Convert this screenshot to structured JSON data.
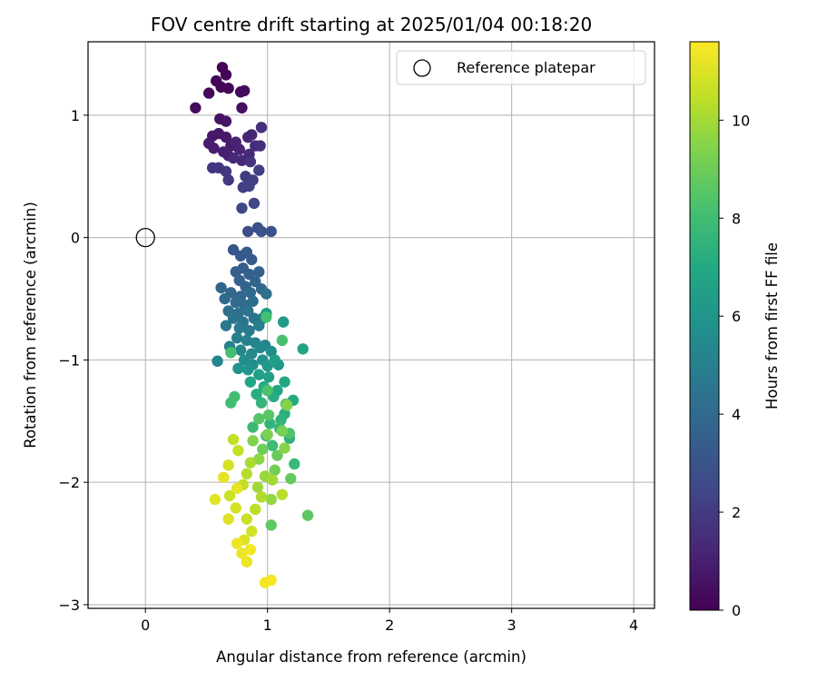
{
  "chart_data": {
    "type": "scatter",
    "title": "FOV centre drift starting at 2025/01/04 00:18:20",
    "xlabel": "Angular distance from reference (arcmin)",
    "ylabel": "Rotation from reference (arcmin)",
    "xlim": [
      -0.47,
      4.17
    ],
    "ylim": [
      -3.03,
      1.6
    ],
    "xticks": [
      0,
      1,
      2,
      3,
      4
    ],
    "yticks": [
      1,
      0,
      -1,
      -2,
      -3
    ],
    "xtick_labels": [
      "0",
      "1",
      "2",
      "3",
      "4"
    ],
    "ytick_labels": [
      "1",
      "0",
      "−1",
      "−2",
      "−3"
    ],
    "grid": true,
    "legend": {
      "placement": "top-right",
      "entries": [
        "Reference platepar"
      ]
    },
    "reference_point": {
      "name": "Reference platepar",
      "x": 0,
      "y": 0,
      "marker": "open-circle"
    },
    "colorbar": {
      "label": "Hours from first FF file",
      "range": [
        0,
        11.6
      ],
      "ticks": [
        0,
        2,
        4,
        6,
        8,
        10
      ],
      "tick_labels": [
        "0",
        "2",
        "4",
        "6",
        "8",
        "10"
      ],
      "colormap": "viridis"
    },
    "series": [
      {
        "color_by": "Hours from first FF file",
        "points": [
          [
            0.63,
            1.39,
            0.05
          ],
          [
            0.58,
            1.28,
            0.1
          ],
          [
            0.66,
            1.33,
            0.12
          ],
          [
            0.62,
            1.23,
            0.15
          ],
          [
            0.68,
            1.22,
            0.2
          ],
          [
            0.52,
            1.18,
            0.22
          ],
          [
            0.78,
            1.19,
            0.3
          ],
          [
            0.81,
            1.2,
            0.32
          ],
          [
            0.41,
            1.06,
            0.35
          ],
          [
            0.79,
            1.06,
            0.45
          ],
          [
            0.61,
            0.97,
            0.55
          ],
          [
            0.66,
            0.95,
            0.6
          ],
          [
            0.55,
            0.83,
            0.7
          ],
          [
            0.6,
            0.85,
            0.75
          ],
          [
            0.66,
            0.82,
            0.8
          ],
          [
            0.7,
            0.75,
            0.85
          ],
          [
            0.52,
            0.77,
            0.9
          ],
          [
            0.56,
            0.73,
            0.95
          ],
          [
            0.64,
            0.7,
            1.0
          ],
          [
            0.68,
            0.67,
            1.05
          ],
          [
            0.74,
            0.78,
            1.1
          ],
          [
            0.77,
            0.72,
            1.15
          ],
          [
            0.84,
            0.82,
            1.2
          ],
          [
            0.87,
            0.84,
            1.25
          ],
          [
            0.72,
            0.65,
            1.3
          ],
          [
            0.79,
            0.63,
            1.35
          ],
          [
            0.85,
            0.68,
            1.4
          ],
          [
            0.9,
            0.75,
            1.45
          ],
          [
            0.95,
            0.9,
            1.55
          ],
          [
            0.94,
            0.75,
            1.6
          ],
          [
            0.86,
            0.62,
            1.7
          ],
          [
            0.6,
            0.57,
            1.75
          ],
          [
            0.55,
            0.57,
            1.8
          ],
          [
            0.66,
            0.54,
            1.85
          ],
          [
            0.68,
            0.47,
            1.9
          ],
          [
            0.82,
            0.5,
            2.0
          ],
          [
            0.88,
            0.47,
            2.05
          ],
          [
            0.93,
            0.55,
            2.1
          ],
          [
            0.8,
            0.41,
            2.2
          ],
          [
            0.85,
            0.42,
            2.25
          ],
          [
            0.89,
            0.28,
            2.4
          ],
          [
            0.79,
            0.24,
            2.5
          ],
          [
            0.84,
            0.05,
            2.7
          ],
          [
            0.92,
            0.08,
            2.8
          ],
          [
            0.95,
            0.05,
            2.85
          ],
          [
            1.03,
            0.05,
            2.9
          ],
          [
            0.72,
            -0.1,
            3.1
          ],
          [
            0.78,
            -0.15,
            3.2
          ],
          [
            0.83,
            -0.12,
            3.25
          ],
          [
            0.87,
            -0.18,
            3.3
          ],
          [
            0.8,
            -0.25,
            3.4
          ],
          [
            0.74,
            -0.28,
            3.45
          ],
          [
            0.85,
            -0.3,
            3.5
          ],
          [
            0.93,
            -0.28,
            3.55
          ],
          [
            0.77,
            -0.35,
            3.6
          ],
          [
            0.82,
            -0.4,
            3.65
          ],
          [
            0.9,
            -0.36,
            3.7
          ],
          [
            0.62,
            -0.41,
            3.75
          ],
          [
            0.7,
            -0.45,
            3.8
          ],
          [
            0.78,
            -0.48,
            3.85
          ],
          [
            0.86,
            -0.45,
            3.9
          ],
          [
            0.95,
            -0.42,
            3.95
          ],
          [
            0.65,
            -0.5,
            4.0
          ],
          [
            0.74,
            -0.53,
            4.05
          ],
          [
            0.81,
            -0.55,
            4.1
          ],
          [
            0.88,
            -0.52,
            4.15
          ],
          [
            0.99,
            -0.46,
            4.2
          ],
          [
            0.68,
            -0.6,
            4.25
          ],
          [
            0.76,
            -0.62,
            4.3
          ],
          [
            0.84,
            -0.6,
            4.35
          ],
          [
            0.72,
            -0.66,
            4.4
          ],
          [
            0.8,
            -0.69,
            4.45
          ],
          [
            0.89,
            -0.66,
            4.5
          ],
          [
            0.96,
            -0.66,
            4.55
          ],
          [
            0.66,
            -0.72,
            4.6
          ],
          [
            0.77,
            -0.74,
            4.7
          ],
          [
            0.85,
            -0.76,
            4.75
          ],
          [
            0.93,
            -0.72,
            4.85
          ],
          [
            0.75,
            -0.82,
            4.9
          ],
          [
            0.83,
            -0.84,
            5.0
          ],
          [
            0.69,
            -0.89,
            5.05
          ],
          [
            0.9,
            -0.86,
            5.1
          ],
          [
            0.98,
            -0.88,
            5.2
          ],
          [
            0.59,
            -1.01,
            5.25
          ],
          [
            0.78,
            -0.92,
            5.3
          ],
          [
            0.87,
            -0.95,
            5.4
          ],
          [
            0.94,
            -0.9,
            5.45
          ],
          [
            1.03,
            -0.93,
            5.6
          ],
          [
            0.81,
            -1.0,
            5.65
          ],
          [
            0.88,
            -1.04,
            5.7
          ],
          [
            0.96,
            -1.0,
            5.8
          ],
          [
            0.76,
            -1.07,
            5.9
          ],
          [
            0.84,
            -1.08,
            6.0
          ],
          [
            1.0,
            -1.05,
            6.1
          ],
          [
            1.09,
            -1.04,
            6.2
          ],
          [
            1.13,
            -0.69,
            6.3
          ],
          [
            0.99,
            -0.62,
            6.35
          ],
          [
            1.06,
            -1.0,
            6.45
          ],
          [
            0.93,
            -1.12,
            6.5
          ],
          [
            1.01,
            -1.14,
            6.6
          ],
          [
            1.29,
            -0.91,
            6.7
          ],
          [
            1.08,
            -1.25,
            6.8
          ],
          [
            0.86,
            -1.18,
            6.85
          ],
          [
            1.14,
            -1.18,
            6.9
          ],
          [
            1.21,
            -1.33,
            7.0
          ],
          [
            0.97,
            -1.22,
            7.1
          ],
          [
            1.05,
            -1.3,
            7.15
          ],
          [
            0.91,
            -1.28,
            7.2
          ],
          [
            1.14,
            -1.44,
            7.3
          ],
          [
            1.18,
            -1.64,
            7.4
          ],
          [
            1.11,
            -1.49,
            7.5
          ],
          [
            1.02,
            -1.52,
            7.55
          ],
          [
            0.95,
            -1.35,
            7.6
          ],
          [
            1.1,
            -1.56,
            7.7
          ],
          [
            1.22,
            -1.85,
            7.75
          ],
          [
            0.99,
            -1.62,
            7.8
          ],
          [
            0.88,
            -1.55,
            7.85
          ],
          [
            1.04,
            -1.7,
            7.9
          ],
          [
            0.7,
            -1.35,
            8.0
          ],
          [
            0.73,
            -1.3,
            8.05
          ],
          [
            0.99,
            -0.65,
            8.1
          ],
          [
            0.7,
            -0.94,
            8.15
          ],
          [
            1.12,
            -0.84,
            8.2
          ],
          [
            1.0,
            -1.25,
            8.3
          ],
          [
            1.18,
            -1.6,
            8.4
          ],
          [
            1.15,
            -1.36,
            8.45
          ],
          [
            0.93,
            -1.48,
            8.5
          ],
          [
            1.01,
            -1.45,
            8.55
          ],
          [
            1.33,
            -2.27,
            8.65
          ],
          [
            1.03,
            -2.35,
            8.7
          ],
          [
            1.19,
            -1.97,
            8.8
          ],
          [
            1.08,
            -1.78,
            8.9
          ],
          [
            0.96,
            -1.73,
            9.0
          ],
          [
            1.06,
            -1.9,
            9.1
          ],
          [
            1.12,
            -1.58,
            9.2
          ],
          [
            1.0,
            -1.61,
            9.3
          ],
          [
            0.88,
            -1.66,
            9.4
          ],
          [
            1.16,
            -1.37,
            9.45
          ],
          [
            1.14,
            -1.72,
            9.5
          ],
          [
            0.93,
            -1.81,
            9.6
          ],
          [
            1.03,
            -2.14,
            9.7
          ],
          [
            0.98,
            -1.95,
            9.8
          ],
          [
            0.92,
            -2.04,
            9.9
          ],
          [
            1.04,
            -1.98,
            10.0
          ],
          [
            0.86,
            -1.84,
            10.1
          ],
          [
            0.95,
            -2.12,
            10.2
          ],
          [
            0.83,
            -1.93,
            10.3
          ],
          [
            1.12,
            -2.1,
            10.35
          ],
          [
            0.9,
            -2.22,
            10.4
          ],
          [
            0.8,
            -2.02,
            10.5
          ],
          [
            0.72,
            -1.65,
            10.55
          ],
          [
            0.76,
            -1.74,
            10.6
          ],
          [
            0.83,
            -2.3,
            10.65
          ],
          [
            0.69,
            -2.11,
            10.7
          ],
          [
            0.87,
            -2.4,
            10.8
          ],
          [
            0.74,
            -2.21,
            10.85
          ],
          [
            0.68,
            -1.86,
            10.9
          ],
          [
            0.81,
            -2.47,
            11.0
          ],
          [
            0.68,
            -2.3,
            11.05
          ],
          [
            0.57,
            -2.14,
            11.1
          ],
          [
            0.64,
            -1.96,
            11.15
          ],
          [
            0.75,
            -2.05,
            11.2
          ],
          [
            0.79,
            -2.58,
            11.25
          ],
          [
            0.83,
            -2.65,
            11.3
          ],
          [
            0.75,
            -2.5,
            11.35
          ],
          [
            0.86,
            -2.55,
            11.4
          ],
          [
            0.98,
            -2.82,
            11.45
          ],
          [
            1.03,
            -2.8,
            11.5
          ]
        ]
      }
    ]
  }
}
